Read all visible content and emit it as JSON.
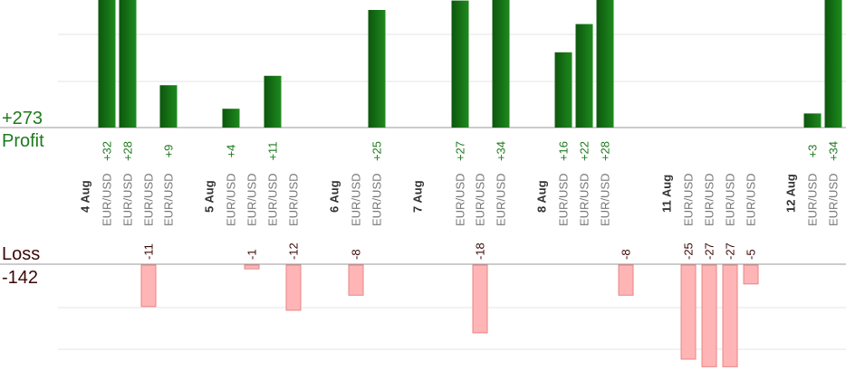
{
  "summary": {
    "profit_total": "+273",
    "profit_label": "Profit",
    "loss_label": "Loss",
    "loss_total": "-142"
  },
  "colors": {
    "profit_bar_dark": "#0d560d",
    "profit_bar_light": "#1e8a1e",
    "loss_bar": "#ffb5b5",
    "loss_bar_edge": "#e88484",
    "profit_text": "#1e7a1e",
    "loss_text": "#3a0808",
    "symbol_text": "#777777",
    "date_text": "#333333",
    "grid": "#e6e6e6",
    "axis": "#999999"
  },
  "chart_data": {
    "type": "bar",
    "grid": true,
    "dates": [
      {
        "label": "4 Aug"
      },
      {
        "label": "5 Aug"
      },
      {
        "label": "6 Aug"
      },
      {
        "label": "7 Aug"
      },
      {
        "label": "8 Aug"
      },
      {
        "label": "11 Aug"
      },
      {
        "label": "12 Aug"
      }
    ],
    "profit_trades": [
      {
        "symbol": "EUR/USD",
        "value": 32,
        "label": "+32"
      },
      {
        "symbol": "EUR/USD",
        "value": 28,
        "label": "+28"
      },
      {
        "symbol": "EUR/USD",
        "value": 9,
        "label": "+9"
      },
      {
        "symbol": "EUR/USD",
        "value": 4,
        "label": "+4"
      },
      {
        "symbol": "EUR/USD",
        "value": 11,
        "label": "+11"
      },
      {
        "symbol": "EUR/USD",
        "value": 25,
        "label": "+25"
      },
      {
        "symbol": "EUR/USD",
        "value": 27,
        "label": "+27"
      },
      {
        "symbol": "EUR/USD",
        "value": 34,
        "label": "+34"
      },
      {
        "symbol": "EUR/USD",
        "value": 16,
        "label": "+16"
      },
      {
        "symbol": "EUR/USD",
        "value": 22,
        "label": "+22"
      },
      {
        "symbol": "EUR/USD",
        "value": 28,
        "label": "+28"
      },
      {
        "symbol": "EUR/USD",
        "value": 3,
        "label": "+3"
      },
      {
        "symbol": "EUR/USD",
        "value": 34,
        "label": "+34"
      }
    ],
    "loss_trades": [
      {
        "value": -11,
        "label": "-11"
      },
      {
        "value": -1,
        "label": "-1"
      },
      {
        "value": -12,
        "label": "-12"
      },
      {
        "value": -8,
        "label": "-8"
      },
      {
        "value": -18,
        "label": "-18"
      },
      {
        "value": -8,
        "label": "-8"
      },
      {
        "value": -25,
        "label": "-25"
      },
      {
        "value": -27,
        "label": "-27"
      },
      {
        "value": -27,
        "label": "-27"
      },
      {
        "value": -5,
        "label": "-5"
      }
    ],
    "other_symbol_labels": [
      "EUR/USD",
      "EUR/USD",
      "EUR/USD",
      "EUR/USD",
      "EUR/USD",
      "EUR/USD",
      "EUR/USD",
      "EUR/USD",
      "EUR/USD",
      "EUR/USD",
      "EUR/USD",
      "EUR/USD"
    ]
  }
}
